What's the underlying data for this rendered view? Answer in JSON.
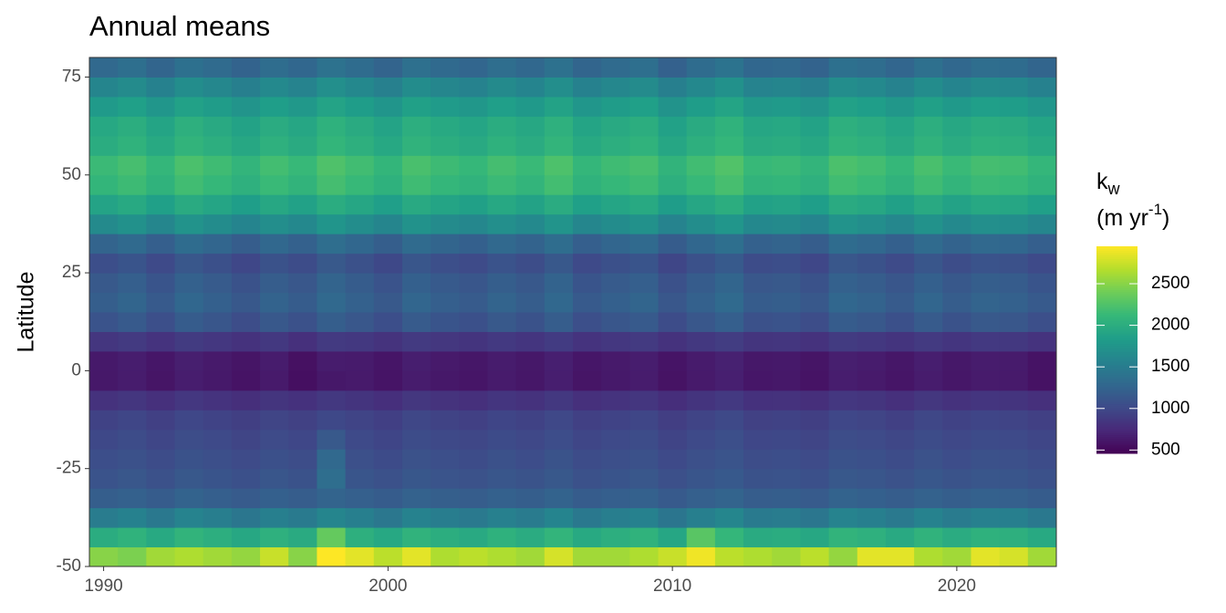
{
  "chart_data": {
    "type": "heatmap",
    "title": "Annual means",
    "y_label": "Latitude",
    "legend_title": [
      "k",
      "w",
      "(m yr",
      "-1",
      ")"
    ],
    "colormap": "viridis",
    "x": [
      1990,
      1991,
      1992,
      1993,
      1994,
      1995,
      1996,
      1997,
      1998,
      1999,
      2000,
      2001,
      2002,
      2003,
      2004,
      2005,
      2006,
      2007,
      2008,
      2009,
      2010,
      2011,
      2012,
      2013,
      2014,
      2015,
      2016,
      2017,
      2018,
      2019,
      2020,
      2021,
      2022,
      2023
    ],
    "y": [
      -47.5,
      -42.5,
      -37.5,
      -32.5,
      -27.5,
      -22.5,
      -17.5,
      -12.5,
      -7.5,
      -2.5,
      2.5,
      7.5,
      12.5,
      17.5,
      22.5,
      27.5,
      32.5,
      37.5,
      42.5,
      47.5,
      52.5,
      57.5,
      62.5,
      67.5,
      72.5,
      77.5
    ],
    "z": [
      [
        2500,
        2450,
        2600,
        2650,
        2600,
        2550,
        2750,
        2500,
        2950,
        2850,
        2700,
        2850,
        2650,
        2700,
        2650,
        2600,
        2800,
        2600,
        2600,
        2650,
        2750,
        2900,
        2700,
        2650,
        2600,
        2700,
        2550,
        2850,
        2850,
        2650,
        2600,
        2850,
        2800,
        2600
      ],
      [
        2000,
        2060,
        1960,
        2080,
        2020,
        1940,
        2040,
        1980,
        2350,
        2030,
        1950,
        2070,
        2010,
        1970,
        2050,
        1990,
        2090,
        1960,
        2020,
        2060,
        1930,
        2300,
        2110,
        1980,
        2000,
        1940,
        2080,
        2040,
        1970,
        2070,
        1990,
        2050,
        2030,
        1960
      ],
      [
        1500,
        1560,
        1460,
        1580,
        1520,
        1440,
        1540,
        1480,
        1600,
        1530,
        1450,
        1570,
        1510,
        1470,
        1550,
        1490,
        1590,
        1460,
        1520,
        1560,
        1430,
        1530,
        1610,
        1480,
        1500,
        1440,
        1580,
        1540,
        1470,
        1570,
        1490,
        1550,
        1530,
        1460
      ],
      [
        1200,
        1230,
        1180,
        1240,
        1210,
        1170,
        1220,
        1190,
        1250,
        1215,
        1175,
        1235,
        1205,
        1185,
        1225,
        1195,
        1245,
        1180,
        1210,
        1230,
        1165,
        1215,
        1255,
        1190,
        1200,
        1170,
        1240,
        1220,
        1185,
        1235,
        1195,
        1225,
        1215,
        1180
      ],
      [
        1100,
        1130,
        1080,
        1140,
        1110,
        1070,
        1120,
        1090,
        1350,
        1115,
        1075,
        1135,
        1105,
        1085,
        1125,
        1095,
        1145,
        1080,
        1110,
        1130,
        1065,
        1115,
        1155,
        1090,
        1100,
        1070,
        1140,
        1120,
        1085,
        1135,
        1095,
        1125,
        1115,
        1080
      ],
      [
        1050,
        1080,
        1030,
        1090,
        1060,
        1020,
        1070,
        1040,
        1300,
        1065,
        1025,
        1085,
        1055,
        1035,
        1075,
        1045,
        1095,
        1030,
        1060,
        1080,
        1015,
        1065,
        1105,
        1040,
        1050,
        1020,
        1090,
        1070,
        1035,
        1085,
        1045,
        1075,
        1065,
        1030
      ],
      [
        1000,
        1030,
        980,
        1040,
        1010,
        970,
        1020,
        990,
        1150,
        1015,
        975,
        1035,
        1005,
        985,
        1025,
        995,
        1045,
        980,
        1010,
        1030,
        965,
        1015,
        1055,
        990,
        1000,
        970,
        1040,
        1020,
        985,
        1035,
        995,
        1025,
        1015,
        980
      ],
      [
        950,
        980,
        930,
        990,
        960,
        920,
        970,
        940,
        1000,
        965,
        925,
        985,
        955,
        935,
        975,
        945,
        995,
        930,
        960,
        980,
        915,
        965,
        1005,
        940,
        950,
        920,
        990,
        970,
        935,
        985,
        945,
        975,
        965,
        930
      ],
      [
        820,
        850,
        800,
        860,
        830,
        790,
        840,
        810,
        870,
        835,
        795,
        855,
        825,
        805,
        845,
        815,
        865,
        800,
        830,
        850,
        785,
        835,
        875,
        810,
        820,
        790,
        860,
        840,
        805,
        855,
        815,
        845,
        835,
        800
      ],
      [
        620,
        650,
        600,
        660,
        630,
        590,
        640,
        560,
        620,
        635,
        595,
        655,
        625,
        605,
        645,
        615,
        665,
        600,
        630,
        650,
        585,
        635,
        675,
        610,
        620,
        590,
        660,
        640,
        605,
        655,
        615,
        645,
        635,
        580
      ],
      [
        630,
        660,
        610,
        670,
        640,
        600,
        650,
        570,
        650,
        645,
        605,
        665,
        635,
        615,
        655,
        625,
        675,
        610,
        640,
        660,
        595,
        645,
        685,
        620,
        630,
        600,
        670,
        650,
        615,
        665,
        625,
        655,
        645,
        590
      ],
      [
        850,
        880,
        830,
        890,
        860,
        820,
        870,
        800,
        880,
        865,
        825,
        885,
        855,
        835,
        875,
        845,
        895,
        830,
        860,
        880,
        815,
        865,
        905,
        840,
        850,
        820,
        890,
        870,
        835,
        885,
        845,
        875,
        865,
        830
      ],
      [
        1100,
        1160,
        1060,
        1180,
        1120,
        1040,
        1140,
        1080,
        1200,
        1130,
        1050,
        1170,
        1110,
        1070,
        1150,
        1090,
        1190,
        1060,
        1120,
        1160,
        1030,
        1130,
        1210,
        1080,
        1100,
        1040,
        1180,
        1140,
        1070,
        1170,
        1090,
        1150,
        1130,
        1060
      ],
      [
        1200,
        1260,
        1160,
        1280,
        1220,
        1140,
        1240,
        1180,
        1300,
        1230,
        1150,
        1270,
        1210,
        1170,
        1250,
        1190,
        1290,
        1160,
        1220,
        1260,
        1130,
        1230,
        1310,
        1180,
        1200,
        1140,
        1280,
        1240,
        1170,
        1270,
        1190,
        1250,
        1230,
        1160
      ],
      [
        1150,
        1210,
        1110,
        1230,
        1170,
        1090,
        1190,
        1130,
        1250,
        1180,
        1100,
        1220,
        1160,
        1120,
        1200,
        1140,
        1240,
        1110,
        1170,
        1210,
        1080,
        1180,
        1260,
        1130,
        1150,
        1090,
        1230,
        1190,
        1120,
        1220,
        1140,
        1200,
        1180,
        1110
      ],
      [
        1050,
        1110,
        1010,
        1130,
        1070,
        990,
        1090,
        1030,
        1150,
        1080,
        1000,
        1120,
        1060,
        1020,
        1100,
        1040,
        1140,
        1010,
        1070,
        1110,
        980,
        1080,
        1160,
        1030,
        1050,
        990,
        1130,
        1090,
        1020,
        1120,
        1040,
        1100,
        1080,
        1010
      ],
      [
        1250,
        1310,
        1210,
        1330,
        1270,
        1190,
        1290,
        1230,
        1350,
        1280,
        1200,
        1320,
        1260,
        1220,
        1300,
        1240,
        1340,
        1210,
        1270,
        1310,
        1180,
        1280,
        1360,
        1230,
        1250,
        1190,
        1330,
        1290,
        1220,
        1320,
        1240,
        1300,
        1280,
        1210
      ],
      [
        1650,
        1710,
        1610,
        1730,
        1670,
        1590,
        1690,
        1630,
        1750,
        1680,
        1600,
        1720,
        1660,
        1620,
        1700,
        1640,
        1740,
        1610,
        1670,
        1710,
        1580,
        1680,
        1760,
        1630,
        1650,
        1590,
        1730,
        1690,
        1620,
        1720,
        1640,
        1700,
        1680,
        1610
      ],
      [
        1900,
        1960,
        1860,
        1980,
        1920,
        1840,
        1940,
        1880,
        2000,
        1930,
        1850,
        1970,
        1910,
        1870,
        1950,
        1890,
        1990,
        1860,
        1920,
        1960,
        1830,
        1930,
        2010,
        1880,
        1900,
        1840,
        1980,
        1940,
        1870,
        1970,
        1890,
        1950,
        1930,
        1860
      ],
      [
        2100,
        2160,
        2060,
        2180,
        2120,
        2040,
        2140,
        2080,
        2200,
        2130,
        2050,
        2170,
        2110,
        2070,
        2150,
        2090,
        2190,
        2060,
        2120,
        2160,
        2030,
        2130,
        2210,
        2080,
        2100,
        2040,
        2180,
        2140,
        2070,
        2170,
        2090,
        2150,
        2130,
        2060
      ],
      [
        2150,
        2210,
        2110,
        2230,
        2170,
        2090,
        2190,
        2130,
        2250,
        2180,
        2100,
        2220,
        2160,
        2120,
        2200,
        2140,
        2240,
        2110,
        2170,
        2210,
        2080,
        2180,
        2260,
        2130,
        2150,
        2090,
        2230,
        2190,
        2120,
        2220,
        2140,
        2200,
        2180,
        2110
      ],
      [
        2000,
        2060,
        1960,
        2080,
        2020,
        1940,
        2040,
        1980,
        2100,
        2030,
        1950,
        2070,
        2010,
        1970,
        2050,
        1990,
        2090,
        1960,
        2020,
        2060,
        1930,
        2030,
        2110,
        1980,
        2000,
        1940,
        2080,
        2040,
        1970,
        2070,
        1990,
        2050,
        2030,
        1960
      ],
      [
        1950,
        2010,
        1910,
        2030,
        1970,
        1890,
        1990,
        1930,
        2050,
        1980,
        1900,
        2020,
        1960,
        1920,
        2000,
        1940,
        2040,
        1910,
        1970,
        2010,
        1880,
        1980,
        2060,
        1930,
        1950,
        1890,
        2030,
        1990,
        1920,
        2020,
        1940,
        2000,
        1980,
        1910
      ],
      [
        1800,
        1860,
        1760,
        1880,
        1820,
        1740,
        1840,
        1780,
        1900,
        1830,
        1750,
        1870,
        1810,
        1770,
        1850,
        1790,
        1890,
        1760,
        1820,
        1860,
        1730,
        1830,
        1910,
        1780,
        1800,
        1740,
        1880,
        1840,
        1770,
        1870,
        1790,
        1850,
        1830,
        1760
      ],
      [
        1600,
        1660,
        1560,
        1680,
        1620,
        1540,
        1640,
        1580,
        1700,
        1630,
        1550,
        1670,
        1610,
        1570,
        1650,
        1590,
        1690,
        1560,
        1620,
        1660,
        1530,
        1630,
        1710,
        1580,
        1600,
        1540,
        1680,
        1640,
        1570,
        1670,
        1590,
        1650,
        1630,
        1560
      ],
      [
        1300,
        1360,
        1260,
        1380,
        1320,
        1240,
        1340,
        1280,
        1400,
        1330,
        1250,
        1370,
        1310,
        1270,
        1350,
        1290,
        1390,
        1260,
        1320,
        1360,
        1230,
        1330,
        1410,
        1280,
        1300,
        1240,
        1380,
        1340,
        1270,
        1370,
        1290,
        1350,
        1330,
        1260
      ]
    ],
    "xlim": [
      1989.5,
      2023.5
    ],
    "xticks": [
      1990,
      2000,
      2010,
      2020
    ],
    "ylim": [
      -50,
      80
    ],
    "yticks": [
      -50,
      -25,
      0,
      25,
      50,
      75
    ],
    "zlim": [
      460,
      2950
    ],
    "zticks": [
      500,
      1000,
      1500,
      2000,
      2500
    ]
  }
}
